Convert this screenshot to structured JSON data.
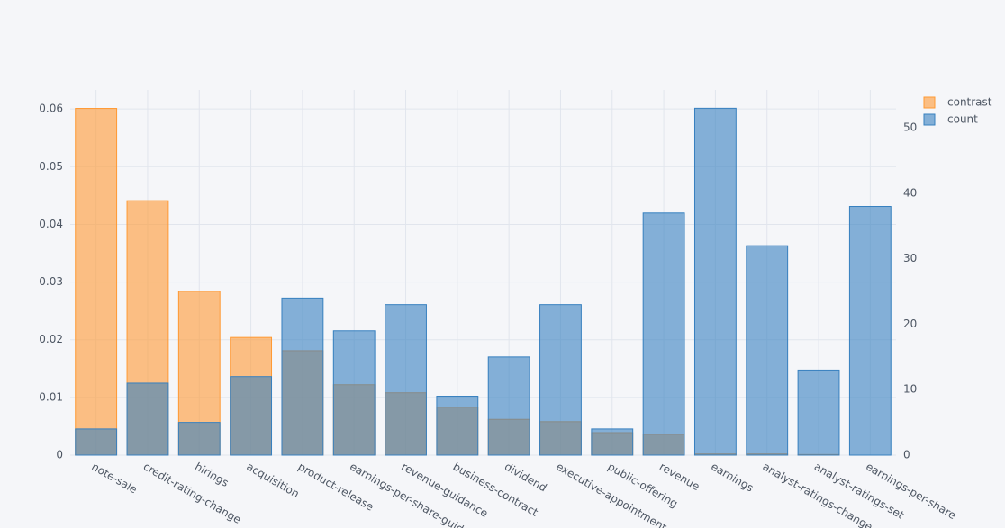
{
  "chart_data": {
    "type": "bar",
    "barmode": "overlay",
    "categories": [
      "note-sale",
      "credit-rating-change",
      "hirings",
      "acquisition",
      "product-release",
      "earnings-per-share-guidance",
      "revenue-guidance",
      "business-contract",
      "dividend",
      "executive-appointment",
      "public-offering",
      "revenue",
      "earnings",
      "analyst-ratings-change",
      "analyst-ratings-set",
      "earnings-per-share"
    ],
    "series": [
      {
        "name": "contrast",
        "color": "#ff9933",
        "values": [
          0.0601,
          0.0441,
          0.0284,
          0.0204,
          0.0181,
          0.0122,
          0.0108,
          0.0083,
          0.0062,
          0.0058,
          0.0039,
          0.0036,
          0.0002,
          0.0002,
          0.0001,
          0
        ]
      },
      {
        "name": "count",
        "color": "#3780bf",
        "axis": "y2",
        "values": [
          4,
          11,
          5,
          12,
          24,
          19,
          23,
          9,
          15,
          23,
          4,
          37,
          53,
          32,
          13,
          38
        ]
      }
    ],
    "ylim": [
      0,
      0.0633
    ],
    "yticks": [
      0,
      0.01,
      0.02,
      0.03,
      0.04,
      0.05,
      0.06
    ],
    "y2lim": [
      0,
      55.8
    ],
    "y2ticks": [
      0,
      10,
      20,
      30,
      40,
      50
    ],
    "grid": true,
    "legend": "top-right"
  }
}
